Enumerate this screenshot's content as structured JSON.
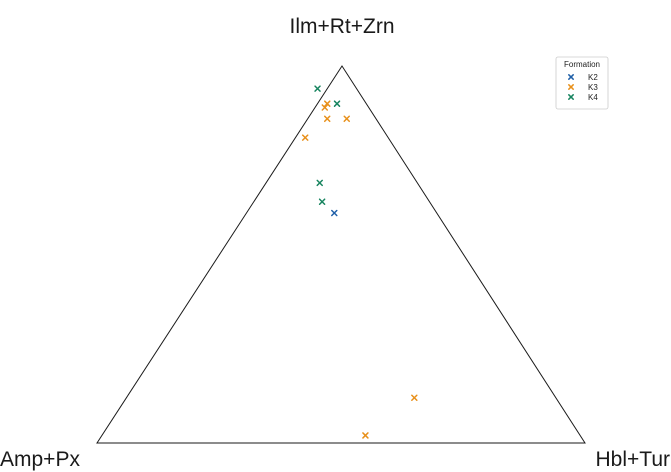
{
  "chart_data": {
    "type": "scatter",
    "subtype": "ternary",
    "apex_labels": {
      "top": "Ilm+Rt+Zrn",
      "left": "Amp+Px",
      "right": "Hbl+Tur"
    },
    "marker": "x",
    "legend": {
      "title": "Formation",
      "placement": "top-right",
      "entries": [
        "K2",
        "K3",
        "K4"
      ]
    },
    "series": [
      {
        "name": "K2",
        "color": "#1f5fa8",
        "points": [
          {
            "top": 0.61,
            "left": 0.21,
            "right": 0.18
          }
        ]
      },
      {
        "name": "K3",
        "color": "#e8901a",
        "points": [
          {
            "top": 0.9,
            "left": 0.08,
            "right": 0.02
          },
          {
            "top": 0.89,
            "left": 0.09,
            "right": 0.02
          },
          {
            "top": 0.86,
            "left": 0.1,
            "right": 0.04
          },
          {
            "top": 0.86,
            "left": 0.06,
            "right": 0.08
          },
          {
            "top": 0.81,
            "left": 0.17,
            "right": 0.02
          },
          {
            "top": 0.12,
            "left": 0.29,
            "right": 0.59
          },
          {
            "top": 0.02,
            "left": 0.44,
            "right": 0.54
          }
        ]
      },
      {
        "name": "K4",
        "color": "#17845f",
        "points": [
          {
            "top": 0.94,
            "left": 0.08,
            "right": -0.02
          },
          {
            "top": 0.9,
            "left": 0.06,
            "right": 0.04
          },
          {
            "top": 0.69,
            "left": 0.2,
            "right": 0.11
          },
          {
            "top": 0.64,
            "left": 0.22,
            "right": 0.14
          }
        ]
      }
    ]
  }
}
